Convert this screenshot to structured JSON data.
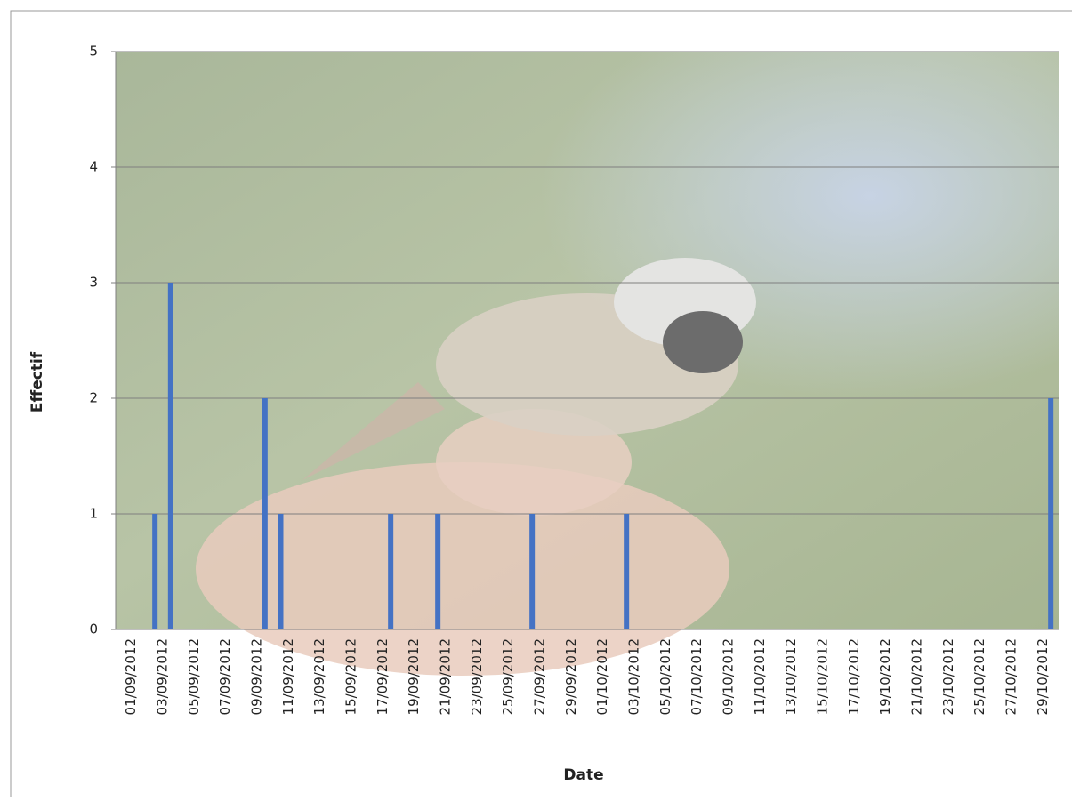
{
  "chart_data": {
    "type": "bar",
    "x_label": "Date",
    "y_label": "Effectif",
    "categories": [
      "01/09/2012",
      null,
      "03/09/2012",
      null,
      "05/09/2012",
      null,
      "07/09/2012",
      null,
      "09/09/2012",
      null,
      "11/09/2012",
      null,
      "13/09/2012",
      null,
      "15/09/2012",
      null,
      "17/09/2012",
      null,
      "19/09/2012",
      null,
      "21/09/2012",
      null,
      "23/09/2012",
      null,
      "25/09/2012",
      null,
      "27/09/2012",
      null,
      "29/09/2012",
      null,
      "01/10/2012",
      null,
      "03/10/2012",
      null,
      "05/10/2012",
      null,
      "07/10/2012",
      null,
      "09/10/2012",
      null,
      "11/10/2012",
      null,
      "13/10/2012",
      null,
      "15/10/2012",
      null,
      "17/10/2012",
      null,
      "19/10/2012",
      null,
      "21/10/2012",
      null,
      "23/10/2012",
      null,
      "25/10/2012",
      null,
      "27/10/2012",
      null,
      "29/10/2012",
      null
    ],
    "values": [
      0,
      0,
      1,
      3,
      0,
      0,
      0,
      0,
      0,
      2,
      1,
      0,
      0,
      0,
      0,
      0,
      0,
      1,
      0,
      0,
      1,
      0,
      0,
      0,
      0,
      0,
      1,
      0,
      0,
      0,
      0,
      0,
      1,
      0,
      0,
      0,
      0,
      0,
      0,
      0,
      0,
      0,
      0,
      0,
      0,
      0,
      0,
      0,
      0,
      0,
      0,
      0,
      0,
      0,
      0,
      0,
      0,
      0,
      0,
      2
    ],
    "color": "#4472c4",
    "ylim": [
      0,
      5
    ],
    "yticks": [
      0,
      1,
      2,
      3,
      4,
      5
    ],
    "grid": true
  }
}
